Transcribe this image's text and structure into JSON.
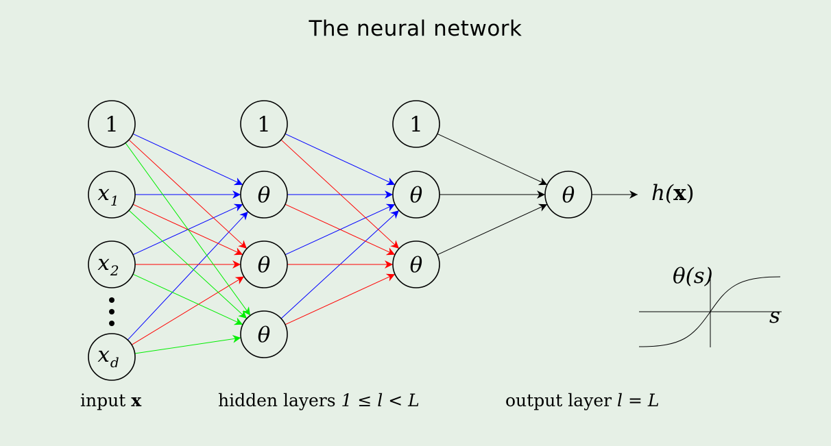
{
  "title": "The neural network",
  "colors": {
    "background": "#e6f0e6",
    "edge_blue": "#0000ff",
    "edge_red": "#ff0000",
    "edge_green": "#00ee00",
    "edge_black": "#000000"
  },
  "layers": {
    "input": {
      "bias_label": "1",
      "x1": "x",
      "x1_sub": "1",
      "x2": "x",
      "x2_sub": "2",
      "xd": "x",
      "xd_sub": "d",
      "ellipsis": "⋮"
    },
    "hidden": {
      "bias_label": "1",
      "node_label": "θ"
    },
    "output_hidden": {
      "bias_label": "1",
      "node_label": "θ"
    },
    "output": {
      "node_label": "θ"
    }
  },
  "output_label": {
    "prefix": "h(",
    "x": "x",
    "suffix": ")"
  },
  "captions": {
    "input": {
      "text": "input ",
      "symbol": "x"
    },
    "hidden": {
      "text": "hidden layers ",
      "math": "1 ≤ l < L"
    },
    "output": {
      "text": "output layer ",
      "math": "l = L"
    }
  },
  "activation_plot": {
    "ylabel": "θ(s)",
    "xlabel": "s"
  }
}
